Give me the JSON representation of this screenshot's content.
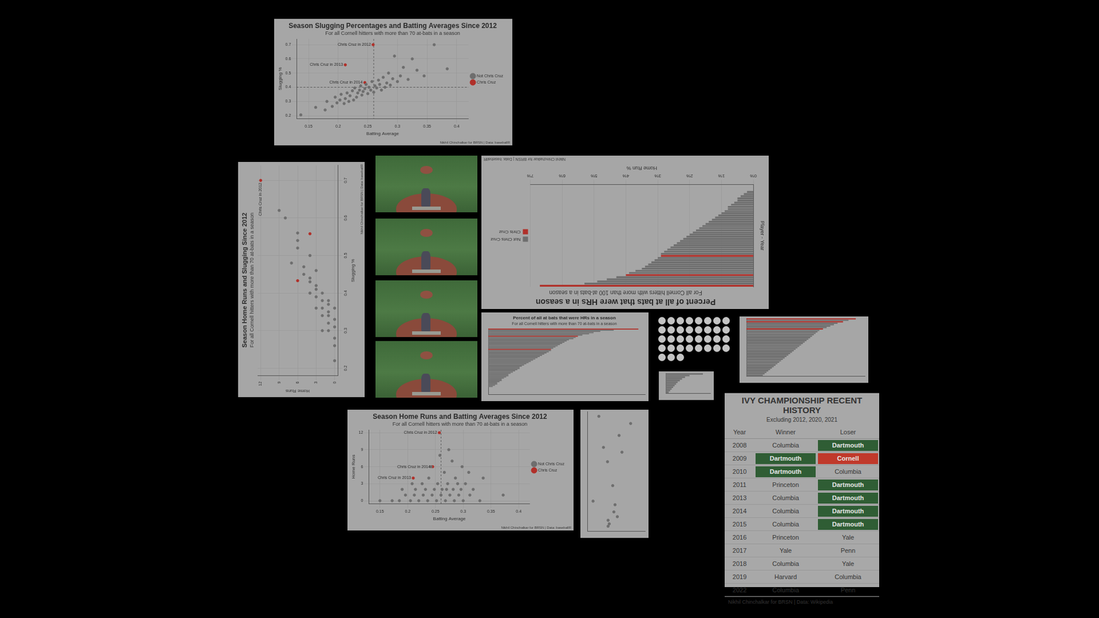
{
  "chart_data": [
    {
      "type": "scatter",
      "title": "Season Slugging Percentages and Batting Averages Since 2012",
      "subtitle": "For all Cornell hitters with more than 70 at-bats in a season",
      "xlabel": "Batting Average",
      "ylabel": "Slugging %",
      "caption": "Nikhil Chinchalkar for BRSN | Data: baseballR",
      "xlim": [
        0.13,
        0.42
      ],
      "xticks": [
        0.15,
        0.2,
        0.25,
        0.3,
        0.35,
        0.4
      ],
      "ylim": [
        0.18,
        0.74
      ],
      "yticks": [
        0.2,
        0.3,
        0.4,
        0.5,
        0.6,
        0.7
      ],
      "grid": true,
      "legend": "right",
      "vlines": [
        0.26
      ],
      "hlines": [
        0.4
      ],
      "series": [
        {
          "name": "Not Chris Cruz",
          "color": "#6e6e6e",
          "x": [
            0.137,
            0.162,
            0.178,
            0.181,
            0.19,
            0.195,
            0.198,
            0.203,
            0.205,
            0.21,
            0.212,
            0.215,
            0.218,
            0.22,
            0.224,
            0.226,
            0.228,
            0.231,
            0.233,
            0.236,
            0.238,
            0.24,
            0.242,
            0.245,
            0.247,
            0.25,
            0.252,
            0.255,
            0.257,
            0.26,
            0.262,
            0.265,
            0.268,
            0.27,
            0.273,
            0.276,
            0.279,
            0.282,
            0.285,
            0.288,
            0.292,
            0.295,
            0.3,
            0.305,
            0.31,
            0.318,
            0.325,
            0.333,
            0.345,
            0.362,
            0.384
          ],
          "values": [
            0.205,
            0.258,
            0.24,
            0.3,
            0.265,
            0.33,
            0.29,
            0.31,
            0.35,
            0.285,
            0.32,
            0.36,
            0.3,
            0.34,
            0.375,
            0.31,
            0.395,
            0.33,
            0.36,
            0.38,
            0.41,
            0.345,
            0.37,
            0.39,
            0.42,
            0.355,
            0.4,
            0.38,
            0.44,
            0.365,
            0.41,
            0.395,
            0.45,
            0.42,
            0.38,
            0.47,
            0.4,
            0.43,
            0.5,
            0.415,
            0.46,
            0.62,
            0.44,
            0.48,
            0.54,
            0.455,
            0.6,
            0.52,
            0.48,
            0.7,
            0.53
          ]
        },
        {
          "name": "Chris Cruz",
          "color": "#b0302a",
          "x": [
            0.259,
            0.212,
            0.245
          ],
          "values": [
            0.7,
            0.558,
            0.433
          ]
        }
      ],
      "annotations": [
        {
          "x": 0.259,
          "y": 0.7,
          "text": "Chris Cruz in 2012"
        },
        {
          "x": 0.212,
          "y": 0.558,
          "text": "Chris Cruz in 2013"
        },
        {
          "x": 0.245,
          "y": 0.433,
          "text": "Chris Cruz in 2014"
        }
      ]
    },
    {
      "type": "scatter",
      "title": "Season Home Runs and Slugging Since 2012",
      "subtitle": "For all Cornell hitters with more than 70 at-bats in a season",
      "xlabel": "Slugging %",
      "ylabel": "Home Runs",
      "caption": "Nikhil Chinchalkar for BRSN | Data: baseballR",
      "xlim": [
        0.18,
        0.74
      ],
      "xticks": [
        0.2,
        0.3,
        0.4,
        0.5,
        0.6,
        0.7
      ],
      "ylim": [
        -0.5,
        12.5
      ],
      "yticks": [
        0,
        3,
        6,
        9,
        12
      ],
      "grid": true,
      "series": [
        {
          "name": "Not Chris Cruz",
          "color": "#6e6e6e",
          "x": [
            0.22,
            0.26,
            0.28,
            0.3,
            0.31,
            0.32,
            0.33,
            0.34,
            0.35,
            0.36,
            0.37,
            0.38,
            0.3,
            0.34,
            0.36,
            0.38,
            0.4,
            0.42,
            0.36,
            0.39,
            0.41,
            0.44,
            0.46,
            0.4,
            0.43,
            0.47,
            0.5,
            0.45,
            0.52,
            0.54,
            0.48,
            0.56,
            0.6,
            0.62
          ],
          "values": [
            0,
            0,
            0,
            1,
            0,
            1,
            0,
            1,
            1,
            0,
            1,
            1,
            2,
            2,
            2,
            2,
            2,
            3,
            3,
            3,
            3,
            4,
            3,
            4,
            4,
            5,
            4,
            5,
            6,
            6,
            7,
            6,
            8,
            9
          ]
        },
        {
          "name": "Chris Cruz",
          "color": "#b0302a",
          "x": [
            0.7,
            0.558,
            0.433
          ],
          "values": [
            12,
            4,
            6
          ]
        }
      ],
      "annotations": [
        {
          "x": 0.7,
          "y": 12,
          "text": "Chris Cruz in 2012"
        }
      ]
    },
    {
      "type": "bar",
      "orientation": "horizontal",
      "title": "Percent of all at bats that were HRs in a season",
      "subtitle": "For all Cornell hitters with more than 100 at-bats in a season",
      "xlabel": "Home Run %",
      "ylabel": "Player - Year",
      "caption": "Nikhil Chinchalkar for BRSN | Data: baseballR",
      "categories": [
        null,
        null,
        null,
        null,
        null,
        null,
        null,
        null,
        null,
        null,
        null,
        null,
        null,
        null,
        null,
        null,
        null,
        null,
        null,
        null,
        null,
        null,
        null,
        null,
        null,
        null,
        null,
        null,
        null,
        null,
        null,
        null,
        null,
        null,
        null,
        null,
        null,
        null,
        null,
        null,
        null,
        null,
        null,
        null,
        null,
        null,
        null,
        null
      ],
      "tick_labels": "x",
      "xlim": [
        0,
        7
      ],
      "xticks": [
        {
          "value": 0,
          "label": "0%"
        },
        {
          "value": 1,
          "label": "1%"
        },
        {
          "value": 2,
          "label": "2%"
        },
        {
          "value": 3,
          "label": "3%"
        },
        {
          "value": 4,
          "label": "4%"
        },
        {
          "value": 5,
          "label": "5%"
        },
        {
          "value": 6,
          "label": "6%"
        },
        {
          "value": 7,
          "label": "7%"
        }
      ],
      "grid": true,
      "legend": "right",
      "series": [
        {
          "name": "Not Chris Cruz",
          "color": "#6e6e6e",
          "values": [
            null,
            5.3,
            4.9,
            4.6,
            4.3,
            null,
            3.9,
            3.7,
            3.5,
            3.4,
            3.3,
            3.2,
            3.1,
            3.0,
            null,
            2.9,
            2.8,
            2.7,
            2.6,
            2.5,
            2.4,
            2.3,
            2.2,
            2.1,
            2.0,
            1.9,
            1.8,
            1.7,
            1.6,
            1.5,
            1.4,
            1.3,
            1.2,
            1.1,
            1.0,
            0.9,
            0.8,
            0.8,
            0.7,
            0.6,
            0.5,
            0.5,
            0.4,
            0.3,
            0.2,
            0,
            0,
            0
          ]
        },
        {
          "name": "Chris Cruz",
          "color": "#b0302a",
          "values": [
            6.7,
            null,
            null,
            null,
            null,
            4.0,
            null,
            null,
            null,
            null,
            null,
            null,
            null,
            null,
            2.9,
            null,
            null,
            null,
            null,
            null,
            null,
            null,
            null,
            null,
            null,
            null,
            null,
            null,
            null,
            null,
            null,
            null,
            null,
            null,
            null,
            null,
            null,
            null,
            null,
            null,
            null,
            null,
            null,
            null,
            null,
            null,
            null,
            null
          ]
        }
      ]
    },
    {
      "type": "bar",
      "orientation": "horizontal",
      "title": "Percent of all at bats that were HRs in a season",
      "subtitle": "For all Cornell hitters with more than 70 at-bats in a season",
      "categories": [
        null,
        null,
        null,
        null,
        null,
        null,
        null,
        null,
        null,
        null,
        null,
        null,
        null,
        null,
        null,
        null,
        null,
        null,
        null,
        null,
        null,
        null,
        null,
        null,
        null,
        null,
        null,
        null,
        null,
        null,
        null,
        null,
        null,
        null,
        null,
        null,
        null,
        null,
        null,
        null,
        null,
        null,
        null,
        null,
        null,
        null,
        null,
        null,
        null,
        null,
        null,
        null,
        null,
        null,
        null
      ],
      "tick_labels": false,
      "xlim": [
        0,
        7
      ],
      "values": [
        6.7,
        5.6,
        5.0,
        4.7,
        4.5,
        4.2,
        4.0,
        3.9,
        3.8,
        3.6,
        3.5,
        3.4,
        3.3,
        3.2,
        3.1,
        3.0,
        2.9,
        2.8,
        2.8,
        2.7,
        2.6,
        2.5,
        2.4,
        2.3,
        2.2,
        2.1,
        2.0,
        1.9,
        1.8,
        1.7,
        1.6,
        1.5,
        1.4,
        1.4,
        1.3,
        1.2,
        1.1,
        1.0,
        0.9,
        0.9,
        0.8,
        0.7,
        0.6,
        0.6,
        0.5,
        0.4,
        0.4,
        0.3,
        0.2,
        0,
        0,
        0,
        0,
        0,
        0
      ],
      "colors": [
        "#b0302a",
        "#6e6e6e",
        "#6e6e6e",
        "#6e6e6e",
        "#6e6e6e",
        "#6e6e6e",
        "#b0302a",
        "#6e6e6e",
        "#6e6e6e",
        "#6e6e6e",
        "#6e6e6e",
        "#6e6e6e",
        "#6e6e6e",
        "#6e6e6e",
        "#6e6e6e",
        "#6e6e6e",
        "#6e6e6e",
        "#b0302a",
        "#6e6e6e",
        "#6e6e6e",
        "#6e6e6e",
        "#6e6e6e",
        "#6e6e6e",
        "#6e6e6e",
        "#6e6e6e",
        "#6e6e6e",
        "#6e6e6e",
        "#6e6e6e",
        "#6e6e6e",
        "#6e6e6e",
        "#6e6e6e",
        "#6e6e6e",
        "#6e6e6e",
        "#6e6e6e",
        "#6e6e6e",
        "#6e6e6e",
        "#6e6e6e",
        "#6e6e6e",
        "#6e6e6e",
        "#6e6e6e",
        "#6e6e6e",
        "#6e6e6e",
        "#6e6e6e",
        "#6e6e6e",
        "#6e6e6e",
        "#6e6e6e",
        "#6e6e6e",
        "#6e6e6e",
        "#6e6e6e",
        "#6e6e6e",
        "#6e6e6e",
        "#6e6e6e",
        "#6e6e6e",
        "#6e6e6e",
        "#6e6e6e"
      ]
    },
    {
      "type": "bar",
      "orientation": "horizontal",
      "categories": [
        null,
        null,
        null,
        null,
        null,
        null,
        null,
        null,
        null,
        null,
        null,
        null,
        null,
        null,
        null,
        null,
        null,
        null,
        null,
        null,
        null,
        null,
        null,
        null,
        null,
        null,
        null,
        null,
        null,
        null,
        null,
        null,
        null,
        null,
        null,
        null,
        null,
        null,
        null,
        null
      ],
      "tick_labels": false,
      "xlim": [
        0,
        6.5
      ],
      "values": [
        6.0,
        5.6,
        5.3,
        5.0,
        4.8,
        4.6,
        4.4,
        4.2,
        4.0,
        3.9,
        3.8,
        3.7,
        3.6,
        3.5,
        3.4,
        3.3,
        3.2,
        3.1,
        3.0,
        2.9,
        2.8,
        2.7,
        2.6,
        2.5,
        2.4,
        2.3,
        2.2,
        2.1,
        2.0,
        1.9,
        1.8,
        1.7,
        1.6,
        1.5,
        1.4,
        1.3,
        1.2,
        1.1,
        1.0,
        0.9
      ],
      "colors": [
        "#b0302a",
        "#6e6e6e",
        "#b0302a",
        "#6e6e6e",
        "#6e6e6e",
        "#6e6e6e",
        "#6e6e6e",
        "#b0302a",
        "#6e6e6e",
        "#6e6e6e",
        "#6e6e6e",
        "#6e6e6e",
        "#6e6e6e",
        "#6e6e6e",
        "#6e6e6e",
        "#6e6e6e",
        "#6e6e6e",
        "#6e6e6e",
        "#6e6e6e",
        "#6e6e6e",
        "#6e6e6e",
        "#6e6e6e",
        "#6e6e6e",
        "#6e6e6e",
        "#6e6e6e",
        "#6e6e6e",
        "#6e6e6e",
        "#6e6e6e",
        "#6e6e6e",
        "#6e6e6e",
        "#6e6e6e",
        "#6e6e6e",
        "#6e6e6e",
        "#6e6e6e",
        "#6e6e6e",
        "#6e6e6e",
        "#6e6e6e",
        "#6e6e6e",
        "#6e6e6e",
        "#6e6e6e"
      ]
    },
    {
      "type": "bar",
      "orientation": "horizontal",
      "categories": [
        null,
        null,
        null,
        null,
        null,
        null,
        null,
        null,
        null,
        null,
        null,
        null
      ],
      "tick_labels": false,
      "xlim": [
        0,
        6
      ],
      "values": [
        5.0,
        3.2,
        2.6,
        2.2,
        1.9,
        1.6,
        1.4,
        1.2,
        1.0,
        0.8,
        0.6,
        0.4
      ],
      "color": "#6e6e6e"
    },
    {
      "type": "scatter",
      "title": "Season Home Runs and Batting Averages Since 2012",
      "subtitle": "For all Cornell hitters with more than 70 at-bats in a season",
      "xlabel": "Batting Average",
      "ylabel": "Home Runs",
      "caption": "Nikhil Chinchalkar for BRSN | Data: baseballR",
      "xlim": [
        0.13,
        0.42
      ],
      "xticks": [
        0.15,
        0.2,
        0.25,
        0.3,
        0.35,
        0.4
      ],
      "ylim": [
        -0.5,
        12.5
      ],
      "yticks": [
        0,
        3,
        6,
        9,
        12
      ],
      "grid": true,
      "legend": "right",
      "vlines": [
        0.26
      ],
      "series": [
        {
          "name": "Not Chris Cruz",
          "color": "#6e6e6e",
          "x": [
            0.15,
            0.172,
            0.185,
            0.196,
            0.205,
            0.212,
            0.22,
            0.228,
            0.236,
            0.244,
            0.252,
            0.26,
            0.268,
            0.276,
            0.284,
            0.292,
            0.3,
            0.312,
            0.33,
            0.372,
            0.19,
            0.214,
            0.232,
            0.248,
            0.262,
            0.27,
            0.282,
            0.296,
            0.318,
            0.208,
            0.226,
            0.254,
            0.272,
            0.29,
            0.304,
            0.238,
            0.266,
            0.286,
            0.31,
            0.336,
            0.242,
            0.28,
            0.298,
            0.258,
            0.274
          ],
          "values": [
            0,
            0,
            0,
            1,
            0,
            1,
            0,
            1,
            0,
            1,
            0,
            1,
            0,
            1,
            0,
            1,
            0,
            1,
            0,
            1,
            2,
            2,
            2,
            2,
            2,
            2,
            2,
            2,
            2,
            3,
            3,
            3,
            3,
            3,
            3,
            4,
            5,
            4,
            5,
            4,
            6,
            7,
            6,
            8,
            9
          ]
        },
        {
          "name": "Chris Cruz",
          "color": "#b0302a",
          "x": [
            0.257,
            0.21,
            0.245
          ],
          "values": [
            12,
            4,
            6
          ]
        }
      ],
      "annotations": [
        {
          "x": 0.257,
          "y": 12,
          "text": "Chris Cruz in 2012"
        },
        {
          "x": 0.21,
          "y": 4,
          "text": "Chris Cruz in 2013"
        },
        {
          "x": 0.245,
          "y": 6,
          "text": "Chris Cruz in 2014"
        }
      ]
    },
    {
      "type": "scatter",
      "tick_labels": false,
      "xlim": [
        0,
        10
      ],
      "ylim": [
        0,
        10
      ],
      "color": "#6e6e6e",
      "x": [
        2.0,
        7.5,
        3.5,
        1.0,
        4.8,
        4.6,
        5.2,
        3.6,
        3.8,
        3.6,
        4.4,
        2.8,
        5.5,
        6.0
      ],
      "values": [
        9.6,
        9.0,
        5.8,
        2.5,
        2.2,
        1.6,
        1.2,
        0.9,
        0.6,
        0.4,
        3.8,
        7.0,
        8.0,
        6.6
      ]
    }
  ],
  "table": {
    "title": "IVY CHAMPIONSHIP RECENT HISTORY",
    "subtitle": "Excluding 2012, 2020, 2021",
    "columns": [
      "Year",
      "Winner",
      "Loser"
    ],
    "rows": [
      [
        2008,
        "Columbia",
        "Dartmouth"
      ],
      [
        2009,
        "Dartmouth",
        "Cornell"
      ],
      [
        2010,
        "Dartmouth",
        "Columbia"
      ],
      [
        2011,
        "Princeton",
        "Dartmouth"
      ],
      [
        2013,
        "Columbia",
        "Dartmouth"
      ],
      [
        2014,
        "Columbia",
        "Dartmouth"
      ],
      [
        2015,
        "Columbia",
        "Dartmouth"
      ],
      [
        2016,
        "Princeton",
        "Yale"
      ],
      [
        2017,
        "Yale",
        "Penn"
      ],
      [
        2018,
        "Columbia",
        "Yale"
      ],
      [
        2019,
        "Harvard",
        "Columbia"
      ],
      [
        2022,
        "Columbia",
        "Penn"
      ]
    ],
    "highlight": {
      "Dartmouth": "#2f5d34",
      "Cornell": "#c0392b"
    },
    "source": "Nikhil Chinchalkar for BRSN | Data: Wikipedia"
  }
}
